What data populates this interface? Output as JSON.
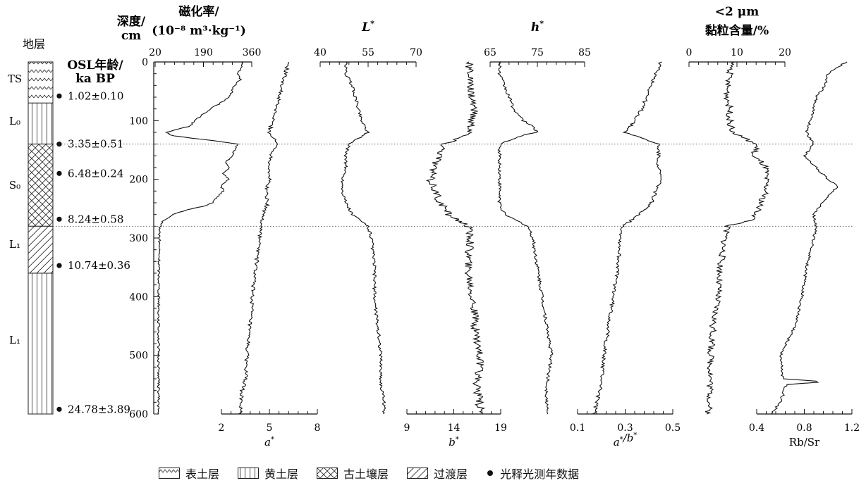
{
  "strat_header": "地层",
  "depth_label_1": "深度/",
  "depth_label_2": "cm",
  "osl_label_1": "OSL年龄/",
  "osl_label_2": "ka BP",
  "units": [
    "TS",
    "L₀",
    "S₀",
    "L₁",
    "L₁"
  ],
  "osl_ages": [
    "1.02±0.10",
    "3.35±0.51",
    "6.48±0.24",
    "8.24±0.58",
    "10.74±0.36",
    "24.78±3.89"
  ],
  "legend": [
    {
      "key": "ts",
      "label": "表土层"
    },
    {
      "key": "loess",
      "label": "黄土层"
    },
    {
      "key": "paleosol",
      "label": "古土壤层"
    },
    {
      "key": "transition",
      "label": "过渡层"
    },
    {
      "key": "osl",
      "label": "光释光测年数据"
    }
  ],
  "chart_data": {
    "type": "line",
    "y_axis": {
      "label": "深度/cm",
      "range": [
        0,
        600
      ],
      "ticks": [
        0,
        100,
        200,
        300,
        400,
        500,
        600
      ],
      "reversed": true
    },
    "reference_depths": [
      140,
      280
    ],
    "strata": [
      {
        "name": "TS",
        "pattern": "ts",
        "top": 0,
        "bottom": 70
      },
      {
        "name": "L₀",
        "pattern": "loess",
        "top": 70,
        "bottom": 140
      },
      {
        "name": "S₀",
        "pattern": "paleosol",
        "top": 140,
        "bottom": 280
      },
      {
        "name": "L₁",
        "pattern": "transition",
        "top": 280,
        "bottom": 360
      },
      {
        "name": "L₁",
        "pattern": "loess",
        "top": 360,
        "bottom": 600
      }
    ],
    "osl_samples": [
      {
        "depth": 58,
        "age": "1.02±0.10"
      },
      {
        "depth": 140,
        "age": "3.35±0.51"
      },
      {
        "depth": 190,
        "age": "6.48±0.24"
      },
      {
        "depth": 268,
        "age": "8.24±0.58"
      },
      {
        "depth": 347,
        "age": "10.74±0.36"
      },
      {
        "depth": 592,
        "age": "24.78±3.89"
      }
    ],
    "series": [
      {
        "name": "磁化率",
        "title": [
          "磁化率/",
          "(10⁻⁸ m³·kg⁻¹)"
        ],
        "axis": "top",
        "range": [
          20,
          360
        ],
        "ticks": [
          20,
          190,
          360
        ],
        "depth": [
          0,
          10,
          20,
          30,
          40,
          50,
          60,
          70,
          80,
          90,
          100,
          110,
          115,
          120,
          125,
          130,
          135,
          140,
          150,
          160,
          170,
          180,
          190,
          200,
          210,
          220,
          230,
          240,
          245,
          250,
          255,
          260,
          270,
          280,
          290,
          300,
          350,
          400,
          450,
          500,
          550,
          580,
          600
        ],
        "values": [
          330,
          325,
          310,
          320,
          300,
          290,
          280,
          250,
          215,
          185,
          160,
          140,
          90,
          60,
          75,
          150,
          240,
          310,
          300,
          290,
          270,
          280,
          260,
          280,
          250,
          260,
          240,
          220,
          200,
          150,
          110,
          80,
          50,
          38,
          35,
          35,
          33,
          33,
          32,
          32,
          32,
          32,
          30
        ]
      },
      {
        "name": "a*",
        "label": "a*",
        "axis": "bottom",
        "range": [
          2,
          8
        ],
        "ticks": [
          2,
          5,
          8
        ],
        "depth": [
          0,
          20,
          40,
          60,
          80,
          100,
          120,
          140,
          160,
          180,
          200,
          220,
          240,
          260,
          280,
          300,
          340,
          380,
          420,
          460,
          500,
          540,
          560,
          580,
          600
        ],
        "values": [
          6.2,
          6.0,
          5.8,
          5.6,
          5.4,
          5.2,
          5.0,
          5.5,
          5.1,
          5.0,
          5.0,
          4.8,
          4.9,
          4.6,
          4.5,
          4.4,
          4.2,
          4.0,
          3.9,
          3.7,
          3.6,
          3.5,
          3.3,
          3.2,
          3.2
        ]
      },
      {
        "name": "L*",
        "label": "L*",
        "axis": "top",
        "range": [
          40,
          70
        ],
        "ticks": [
          40,
          55,
          70
        ],
        "depth": [
          0,
          20,
          40,
          60,
          80,
          100,
          120,
          140,
          160,
          180,
          200,
          220,
          240,
          260,
          280,
          300,
          350,
          400,
          450,
          500,
          550,
          580,
          600
        ],
        "values": [
          48,
          48,
          50,
          51,
          52,
          53,
          55,
          49,
          48,
          48,
          47,
          47,
          48,
          50,
          55,
          56,
          57,
          57,
          58,
          59,
          59,
          60,
          60
        ]
      },
      {
        "name": "b*",
        "label": "b*",
        "axis": "bottom",
        "range": [
          9,
          19
        ],
        "ticks": [
          9,
          14,
          19
        ],
        "depth": [
          0,
          20,
          40,
          60,
          80,
          100,
          120,
          140,
          160,
          180,
          200,
          220,
          240,
          260,
          280,
          300,
          350,
          400,
          450,
          500,
          550,
          580,
          600
        ],
        "values": [
          15.5,
          15.8,
          15.6,
          16.0,
          16.2,
          15.9,
          15.8,
          13.0,
          12.5,
          11.8,
          11.5,
          12.0,
          12.5,
          13.5,
          15.5,
          15.8,
          15.5,
          16.0,
          16.3,
          16.8,
          16.5,
          16.7,
          17.0
        ]
      },
      {
        "name": "h*",
        "label": "h*",
        "axis": "top",
        "range": [
          65,
          85
        ],
        "ticks": [
          65,
          75,
          85
        ],
        "depth": [
          0,
          20,
          40,
          60,
          80,
          100,
          110,
          120,
          125,
          140,
          160,
          180,
          200,
          220,
          240,
          260,
          280,
          300,
          350,
          400,
          450,
          500,
          550,
          580,
          600
        ],
        "values": [
          67,
          67,
          68,
          69,
          70,
          72,
          74,
          75,
          72,
          67,
          67,
          67,
          67,
          67,
          67,
          68,
          73,
          74,
          75,
          76,
          77,
          78,
          77,
          77,
          77
        ]
      },
      {
        "name": "a*/b*",
        "label": "a*/b*",
        "axis": "bottom",
        "range": [
          0.1,
          0.5
        ],
        "ticks": [
          0.1,
          0.3,
          0.5
        ],
        "depth": [
          0,
          20,
          40,
          60,
          80,
          100,
          120,
          140,
          160,
          180,
          200,
          220,
          240,
          260,
          280,
          300,
          350,
          400,
          450,
          500,
          550,
          580,
          600
        ],
        "values": [
          0.45,
          0.43,
          0.41,
          0.39,
          0.37,
          0.34,
          0.3,
          0.44,
          0.44,
          0.44,
          0.45,
          0.43,
          0.41,
          0.36,
          0.29,
          0.28,
          0.27,
          0.25,
          0.23,
          0.21,
          0.2,
          0.18,
          0.17
        ]
      },
      {
        "name": "<2 μm 黏粒含量",
        "title": [
          "<2 μm",
          "黏粒含量/%"
        ],
        "axis": "top",
        "range": [
          0,
          20
        ],
        "ticks": [
          0,
          10,
          20
        ],
        "depth": [
          0,
          20,
          40,
          60,
          80,
          100,
          120,
          140,
          150,
          160,
          170,
          180,
          200,
          220,
          240,
          260,
          270,
          280,
          300,
          350,
          400,
          450,
          500,
          550,
          580,
          600
        ],
        "values": [
          9,
          8.5,
          8,
          8,
          8.5,
          8.5,
          9,
          14,
          14,
          13,
          15,
          16,
          16,
          16,
          15,
          14,
          13,
          8,
          7.5,
          6.5,
          6,
          5,
          4.5,
          4.5,
          4.3,
          4
        ]
      },
      {
        "name": "Rb/Sr",
        "label": "Rb/Sr",
        "axis": "bottom",
        "range": [
          0.4,
          1.2
        ],
        "ticks": [
          0.4,
          0.8,
          1.2
        ],
        "depth": [
          0,
          20,
          40,
          60,
          80,
          100,
          120,
          140,
          160,
          180,
          200,
          210,
          220,
          240,
          260,
          280,
          300,
          350,
          400,
          450,
          500,
          540,
          545,
          550,
          580,
          600
        ],
        "values": [
          1.15,
          1.0,
          0.98,
          0.9,
          0.88,
          0.85,
          0.82,
          0.88,
          0.8,
          0.9,
          1.0,
          1.08,
          1.05,
          0.95,
          0.88,
          0.9,
          0.88,
          0.82,
          0.78,
          0.72,
          0.6,
          0.62,
          0.97,
          0.65,
          0.6,
          0.52
        ]
      }
    ]
  }
}
